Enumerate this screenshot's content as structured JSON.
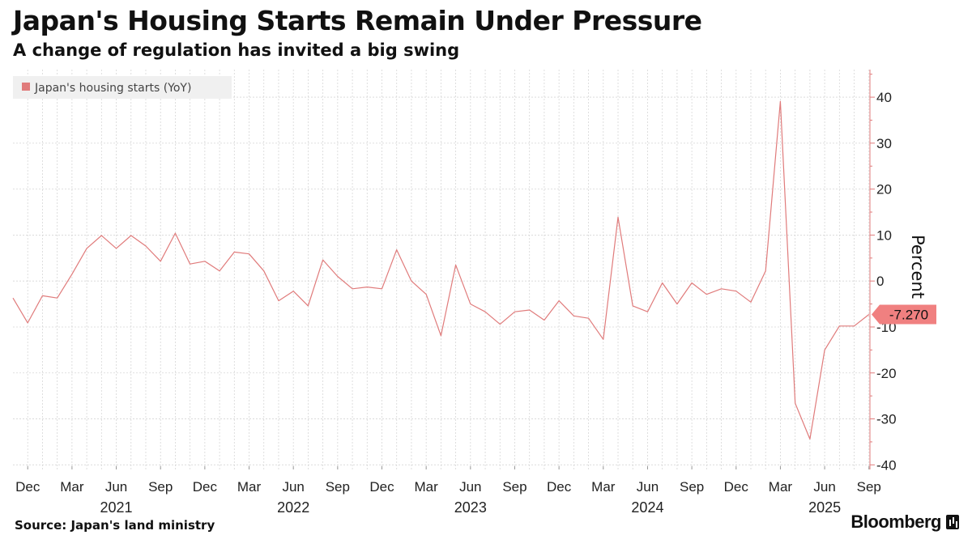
{
  "header": {
    "title": "Japan's Housing Starts Remain Under Pressure",
    "subtitle": "A change of regulation has invited a big swing"
  },
  "footer": {
    "source": "Source: Japan's land ministry",
    "brand": "Bloomberg"
  },
  "colors": {
    "series": "#e07b7b",
    "marker": "#f08080",
    "axis": "#e07b7b",
    "grid": "#d6d6d6"
  },
  "chart_data": {
    "type": "line",
    "title": "Japan's Housing Starts Remain Under Pressure",
    "ylabel": "Percent",
    "ylim": [
      -41,
      46
    ],
    "yticks": [
      40,
      30,
      20,
      10,
      0,
      -10,
      -20,
      -30,
      -40
    ],
    "ytick_labels": [
      "40",
      "30",
      "20",
      "10",
      "0",
      "-10",
      "-20",
      "-30",
      "-40"
    ],
    "grid": true,
    "legend_position": "top-left",
    "x_start": "2020-11",
    "x_end": "2025-10",
    "xticks": [
      {
        "label": "Dec",
        "month": 1
      },
      {
        "label": "Mar",
        "month": 4
      },
      {
        "label": "Jun",
        "month": 7
      },
      {
        "label": "Sep",
        "month": 10
      },
      {
        "label": "Dec",
        "month": 13
      },
      {
        "label": "Mar",
        "month": 16
      },
      {
        "label": "Jun",
        "month": 19
      },
      {
        "label": "Sep",
        "month": 22
      },
      {
        "label": "Dec",
        "month": 25
      },
      {
        "label": "Mar",
        "month": 28
      },
      {
        "label": "Jun",
        "month": 31
      },
      {
        "label": "Sep",
        "month": 34
      },
      {
        "label": "Dec",
        "month": 37
      },
      {
        "label": "Mar",
        "month": 40
      },
      {
        "label": "Jun",
        "month": 43
      },
      {
        "label": "Sep",
        "month": 46
      },
      {
        "label": "Dec",
        "month": 49
      },
      {
        "label": "Mar",
        "month": 52
      },
      {
        "label": "Jun",
        "month": 55
      },
      {
        "label": "Sep",
        "month": 58
      }
    ],
    "year_labels": [
      {
        "label": "2021",
        "month": 7
      },
      {
        "label": "2022",
        "month": 19
      },
      {
        "label": "2023",
        "month": 31
      },
      {
        "label": "2024",
        "month": 43
      },
      {
        "label": "2025",
        "month": 55
      }
    ],
    "series": [
      {
        "name": "Japan's housing starts (YoY)",
        "last_value_label": "-7.270",
        "values": [
          -3.7,
          -9.1,
          -3.2,
          -3.7,
          1.5,
          7.1,
          9.9,
          7.1,
          9.9,
          7.6,
          4.3,
          10.4,
          3.7,
          4.3,
          2.2,
          6.3,
          5.9,
          2.2,
          -4.3,
          -2.2,
          -5.4,
          4.6,
          1.0,
          -1.7,
          -1.3,
          -1.7,
          6.8,
          0.0,
          -2.9,
          -11.9,
          3.5,
          -5.0,
          -6.7,
          -9.4,
          -6.7,
          -6.3,
          -8.5,
          -4.3,
          -7.6,
          -8.1,
          -12.7,
          13.9,
          -5.4,
          -6.7,
          -0.4,
          -5.0,
          -0.4,
          -2.9,
          -1.7,
          -2.2,
          -4.6,
          2.2,
          39.1,
          -26.6,
          -34.4,
          -15.0,
          -9.8,
          -9.8,
          -7.27
        ]
      }
    ]
  }
}
